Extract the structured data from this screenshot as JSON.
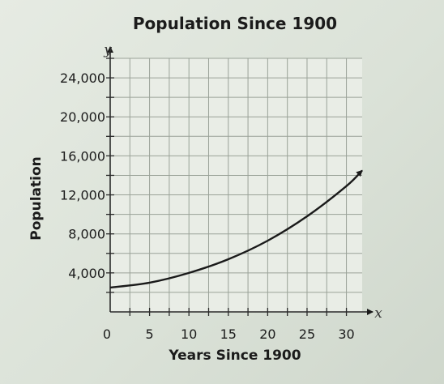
{
  "chart_data": {
    "type": "line",
    "title": "Population Since 1900",
    "xlabel": "Years Since 1900",
    "ylabel": "Population",
    "x_axis_letter": "x",
    "y_axis_letter": "y",
    "xlim": [
      0,
      32
    ],
    "ylim": [
      0,
      26000
    ],
    "x_ticks": [
      0,
      5,
      10,
      15,
      20,
      25,
      30
    ],
    "x_tick_labels": [
      "0",
      "5",
      "10",
      "15",
      "20",
      "25",
      "30"
    ],
    "y_ticks": [
      4000,
      8000,
      12000,
      16000,
      20000,
      24000
    ],
    "y_tick_labels": [
      "4,000",
      "8,000",
      "12,000",
      "16,000",
      "20,000",
      "24,000"
    ],
    "grid": true,
    "series": [
      {
        "x": [
          0,
          5,
          10,
          15,
          20,
          25,
          30,
          32
        ],
        "y": [
          2500,
          3000,
          4000,
          5400,
          7300,
          9800,
          12900,
          14500
        ]
      }
    ],
    "colors": {
      "line": "#1a1a1a",
      "grid": "#9aa298",
      "axis": "#2a2a2a"
    }
  }
}
